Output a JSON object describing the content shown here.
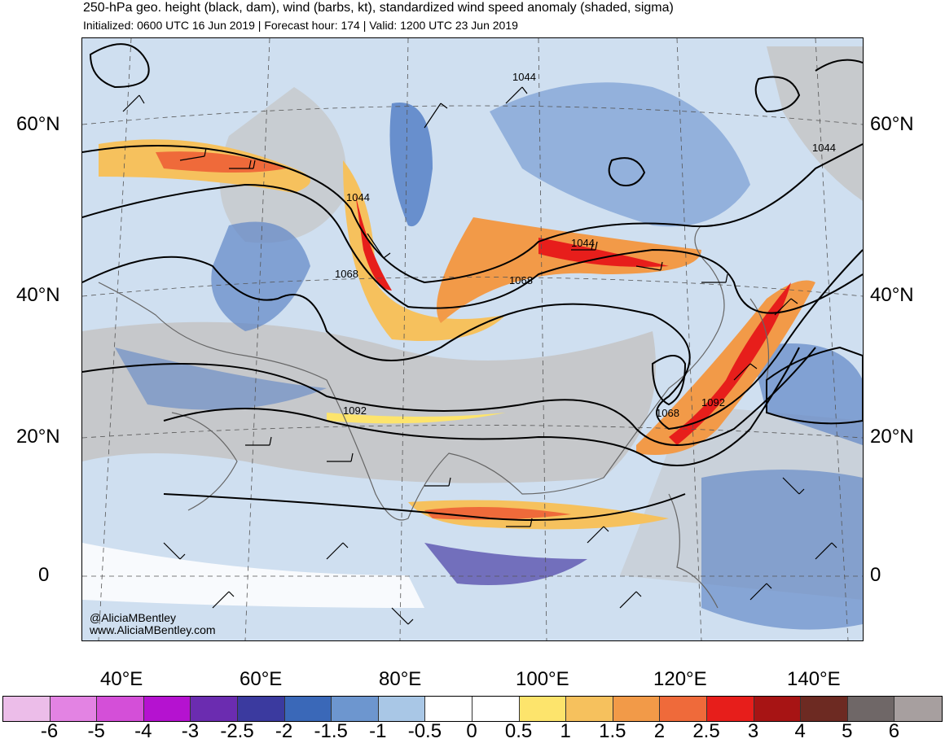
{
  "title": "250-hPa geo. height (black, dam), wind (barbs, kt), standardized wind speed anomaly (shaded, sigma)",
  "subtitle": "Initialized: 0600 UTC 16 Jun 2019 | Forecast hour: 174 | Valid: 1200 UTC 23 Jun 2019",
  "map": {
    "lat_labels": [
      "60°N",
      "40°N",
      "20°N",
      "0"
    ],
    "lon_labels": [
      "40°E",
      "60°E",
      "80°E",
      "100°E",
      "120°E",
      "140°E"
    ],
    "contour_labels": [
      "1044",
      "1044",
      "1044",
      "1044",
      "1068",
      "1068",
      "1068",
      "1092",
      "1092"
    ],
    "credit_handle": "@AliciaMBentley",
    "credit_url": "www.AliciaMBentley.com"
  },
  "colorbar": {
    "colors": [
      "#ecbde9",
      "#e383e3",
      "#d44fd8",
      "#b512d0",
      "#6b2cb0",
      "#3b3a9f",
      "#3a68b8",
      "#6d96cf",
      "#a9c7e6",
      "#ffffff",
      "#ffffff",
      "#fde46c",
      "#f6c15d",
      "#f29a48",
      "#ef6a3a",
      "#e71e1b",
      "#a71414",
      "#6d2a22",
      "#6f6767",
      "#a79f9f"
    ],
    "tick_labels": [
      "-6",
      "-5",
      "-4",
      "-3",
      "-2.5",
      "-2",
      "-1.5",
      "-1",
      "-0.5",
      "0",
      "0.5",
      "1",
      "1.5",
      "2",
      "2.5",
      "3",
      "4",
      "5",
      "6"
    ]
  }
}
